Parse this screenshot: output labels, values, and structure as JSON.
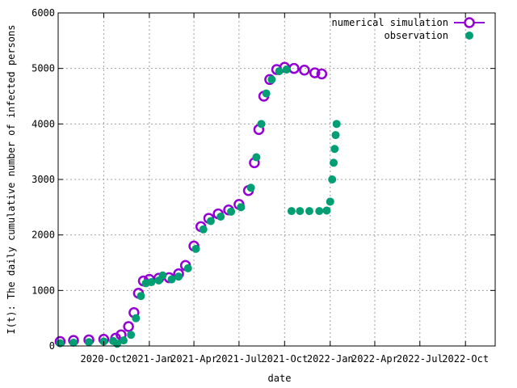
{
  "chart_data": {
    "type": "scatter",
    "xlabel": "date",
    "ylabel": "I(t): The daily cumulative number of infected persons",
    "xlim": [
      "2020-07-01",
      "2022-11-30"
    ],
    "ylim": [
      0,
      6000
    ],
    "grid": true,
    "legend_position": "top-right",
    "x_ticks": [
      {
        "date": "2020-10-01",
        "label": "2020-Oct"
      },
      {
        "date": "2021-01-01",
        "label": "2021-Jan"
      },
      {
        "date": "2021-04-01",
        "label": "2021-Apr"
      },
      {
        "date": "2021-07-01",
        "label": "2021-Jul"
      },
      {
        "date": "2021-10-01",
        "label": "2021-Oct"
      },
      {
        "date": "2022-01-01",
        "label": "2022-Jan"
      },
      {
        "date": "2022-04-01",
        "label": "2022-Apr"
      },
      {
        "date": "2022-07-01",
        "label": "2022-Jul"
      },
      {
        "date": "2022-10-01",
        "label": "2022-Oct"
      }
    ],
    "y_ticks": [
      {
        "value": 0,
        "label": "0"
      },
      {
        "value": 1000,
        "label": "1000"
      },
      {
        "value": 2000,
        "label": "2000"
      },
      {
        "value": 3000,
        "label": "3000"
      },
      {
        "value": 4000,
        "label": "4000"
      },
      {
        "value": 5000,
        "label": "5000"
      },
      {
        "value": 6000,
        "label": "6000"
      }
    ],
    "series": [
      {
        "name": "numerical simulation",
        "color": "#9400d3",
        "marker": "open-circle",
        "points": [
          [
            "2020-07-05",
            80
          ],
          [
            "2020-08-01",
            100
          ],
          [
            "2020-09-01",
            110
          ],
          [
            "2020-10-01",
            120
          ],
          [
            "2020-10-25",
            140
          ],
          [
            "2020-11-05",
            200
          ],
          [
            "2020-11-20",
            350
          ],
          [
            "2020-12-01",
            600
          ],
          [
            "2020-12-10",
            950
          ],
          [
            "2020-12-20",
            1170
          ],
          [
            "2021-01-01",
            1200
          ],
          [
            "2021-01-20",
            1220
          ],
          [
            "2021-02-10",
            1230
          ],
          [
            "2021-03-01",
            1300
          ],
          [
            "2021-03-15",
            1450
          ],
          [
            "2021-04-01",
            1800
          ],
          [
            "2021-04-15",
            2150
          ],
          [
            "2021-05-01",
            2300
          ],
          [
            "2021-05-20",
            2380
          ],
          [
            "2021-06-10",
            2450
          ],
          [
            "2021-07-01",
            2550
          ],
          [
            "2021-07-20",
            2800
          ],
          [
            "2021-08-01",
            3300
          ],
          [
            "2021-08-10",
            3900
          ],
          [
            "2021-08-20",
            4500
          ],
          [
            "2021-09-01",
            4800
          ],
          [
            "2021-09-15",
            4980
          ],
          [
            "2021-10-01",
            5020
          ],
          [
            "2021-10-20",
            5000
          ],
          [
            "2021-11-10",
            4970
          ],
          [
            "2021-12-01",
            4920
          ],
          [
            "2021-12-15",
            4900
          ]
        ]
      },
      {
        "name": "observation",
        "color": "#009e73",
        "marker": "filled-circle",
        "points": [
          [
            "2020-07-05",
            50
          ],
          [
            "2020-08-01",
            60
          ],
          [
            "2020-09-01",
            70
          ],
          [
            "2020-10-01",
            80
          ],
          [
            "2020-10-20",
            90
          ],
          [
            "2020-10-28",
            40
          ],
          [
            "2020-11-10",
            100
          ],
          [
            "2020-11-25",
            200
          ],
          [
            "2020-12-05",
            500
          ],
          [
            "2020-12-15",
            900
          ],
          [
            "2020-12-25",
            1130
          ],
          [
            "2021-01-05",
            1150
          ],
          [
            "2021-01-20",
            1180
          ],
          [
            "2021-01-28",
            1270
          ],
          [
            "2021-02-15",
            1200
          ],
          [
            "2021-03-01",
            1250
          ],
          [
            "2021-03-20",
            1400
          ],
          [
            "2021-04-05",
            1750
          ],
          [
            "2021-04-20",
            2100
          ],
          [
            "2021-05-05",
            2250
          ],
          [
            "2021-05-25",
            2330
          ],
          [
            "2021-06-15",
            2420
          ],
          [
            "2021-07-05",
            2500
          ],
          [
            "2021-07-25",
            2850
          ],
          [
            "2021-08-05",
            3400
          ],
          [
            "2021-08-15",
            4000
          ],
          [
            "2021-08-25",
            4550
          ],
          [
            "2021-09-05",
            4800
          ],
          [
            "2021-09-20",
            4950
          ],
          [
            "2021-10-05",
            4980
          ],
          [
            "2021-10-15",
            2430
          ],
          [
            "2021-11-01",
            2430
          ],
          [
            "2021-11-20",
            2430
          ],
          [
            "2021-12-10",
            2430
          ],
          [
            "2021-12-25",
            2440
          ],
          [
            "2022-01-01",
            2600
          ],
          [
            "2022-01-05",
            3000
          ],
          [
            "2022-01-08",
            3300
          ],
          [
            "2022-01-10",
            3550
          ],
          [
            "2022-01-12",
            3800
          ],
          [
            "2022-01-14",
            4000
          ]
        ]
      }
    ]
  }
}
